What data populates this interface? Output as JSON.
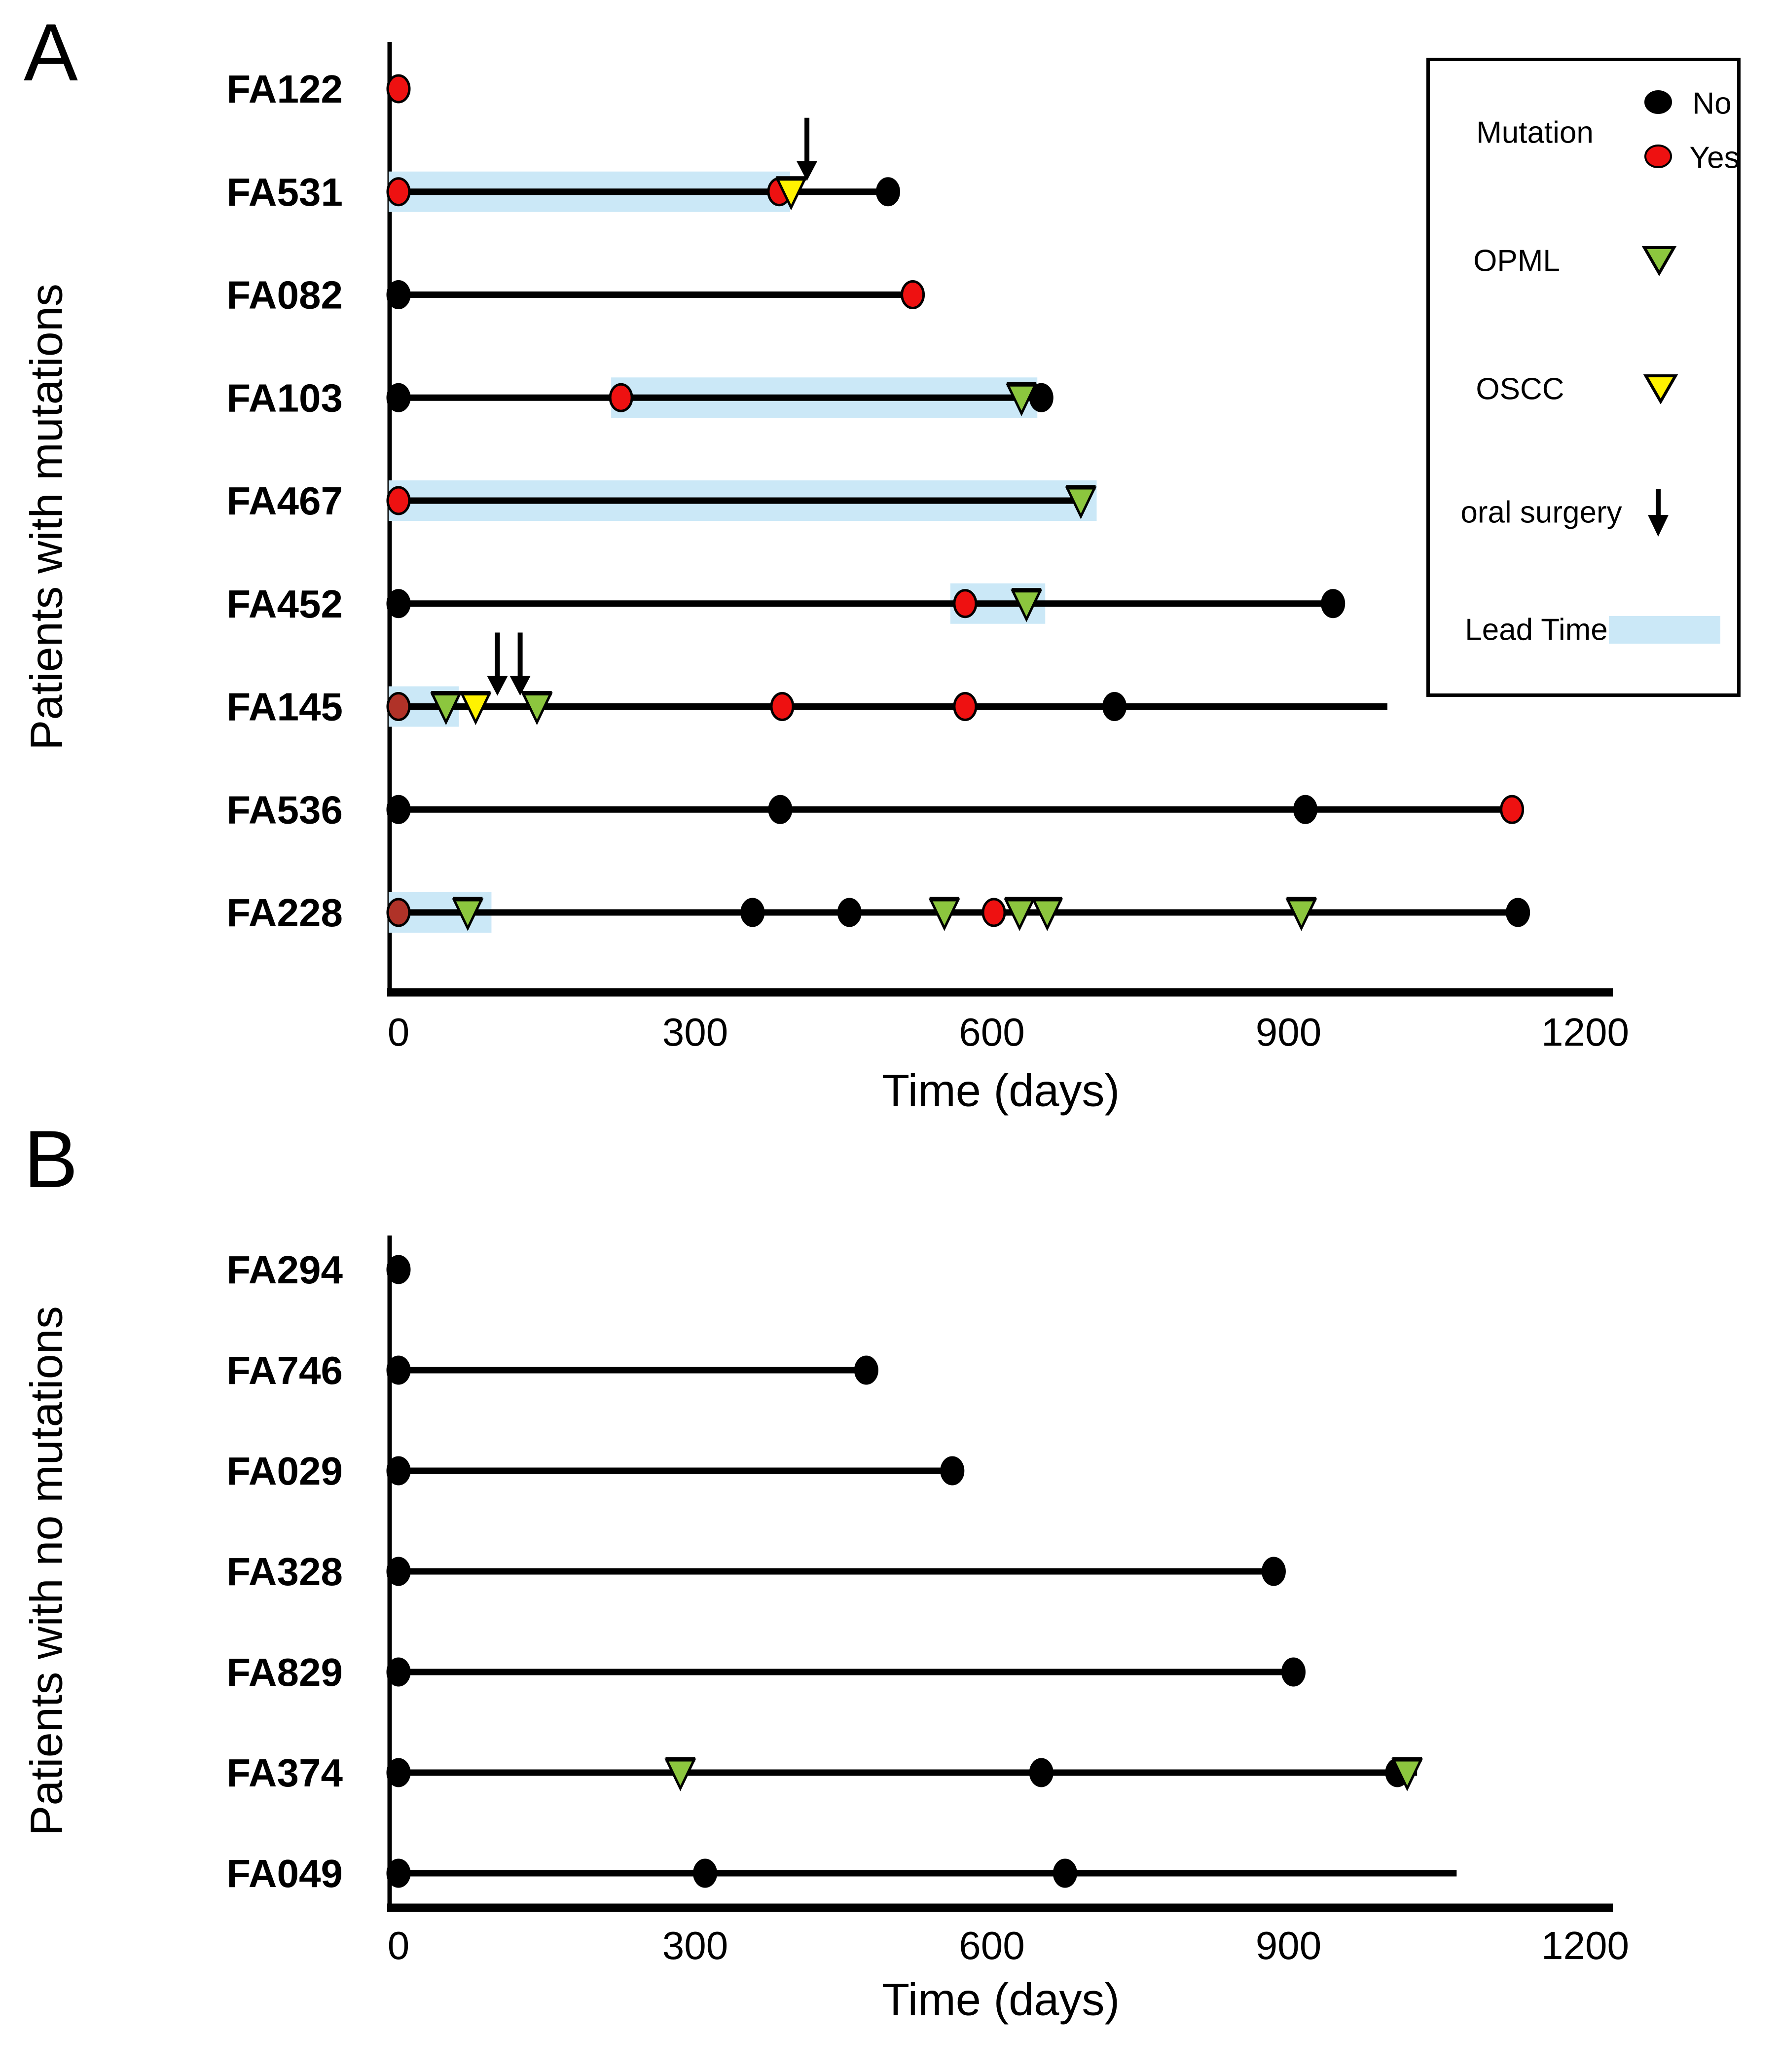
{
  "colors": {
    "mutation_no": "#000000",
    "mutation_yes": "#ee1111",
    "mutation_yes_dark": "#b03228",
    "opml_green": "#8cc63e",
    "oscc_yellow": "#fff200",
    "lead_time_blue": "#cbe8f7",
    "axis": "#000000"
  },
  "legend": {
    "mutation_label": "Mutation",
    "no_label": "No",
    "yes_label": "Yes",
    "opml_label": "OPML",
    "oscc_label": "OSCC",
    "oral_surgery_label": "oral surgery",
    "lead_time_label": "Lead Time"
  },
  "chart_data": [
    {
      "type": "scatter",
      "panel_label": "A",
      "ylabel": "Patients with mutations",
      "xlabel": "Time (days)",
      "x_ticks": [
        0,
        300,
        600,
        900,
        1200
      ],
      "xlim": [
        0,
        1230
      ],
      "marker_legend": {
        "no": "black circle",
        "yes": "red circle",
        "opml": "green triangle",
        "oscc": "yellow triangle",
        "arrow": "oral surgery",
        "lead": "lead time band"
      },
      "patients": [
        {
          "id": "FA122",
          "line": null,
          "lead": null,
          "events": [
            {
              "t": "yes",
              "d": 0
            }
          ]
        },
        {
          "id": "FA531",
          "line": [
            0,
            495
          ],
          "lead": [
            0,
            390
          ],
          "events": [
            {
              "t": "yes",
              "d": 0
            },
            {
              "t": "yes",
              "d": 385
            },
            {
              "t": "oscc",
              "d": 397
            },
            {
              "t": "no",
              "d": 495
            },
            {
              "t": "arrow",
              "d": 413
            }
          ]
        },
        {
          "id": "FA082",
          "line": [
            0,
            520
          ],
          "lead": null,
          "events": [
            {
              "t": "no",
              "d": 0
            },
            {
              "t": "yes",
              "d": 520
            }
          ]
        },
        {
          "id": "FA103",
          "line": [
            0,
            650
          ],
          "lead": [
            225,
            640
          ],
          "events": [
            {
              "t": "no",
              "d": 0
            },
            {
              "t": "yes",
              "d": 225
            },
            {
              "t": "no",
              "d": 650
            },
            {
              "t": "opml",
              "d": 630
            }
          ]
        },
        {
          "id": "FA467",
          "line": [
            0,
            692
          ],
          "lead": [
            0,
            700
          ],
          "events": [
            {
              "t": "yes",
              "d": 0
            },
            {
              "t": "opml",
              "d": 690
            }
          ]
        },
        {
          "id": "FA452",
          "line": [
            0,
            945
          ],
          "lead": [
            568,
            648
          ],
          "events": [
            {
              "t": "no",
              "d": 0
            },
            {
              "t": "yes",
              "d": 573
            },
            {
              "t": "opml",
              "d": 635
            },
            {
              "t": "no",
              "d": 945
            }
          ]
        },
        {
          "id": "FA145",
          "line": [
            0,
            1000
          ],
          "lead": [
            0,
            55
          ],
          "events": [
            {
              "t": "yes",
              "d": 0,
              "shade": "dark"
            },
            {
              "t": "opml",
              "d": 48
            },
            {
              "t": "oscc",
              "d": 78
            },
            {
              "t": "arrow",
              "d": 100
            },
            {
              "t": "arrow",
              "d": 123
            },
            {
              "t": "opml",
              "d": 140
            },
            {
              "t": "yes",
              "d": 388
            },
            {
              "t": "yes",
              "d": 573
            },
            {
              "t": "no",
              "d": 724
            }
          ]
        },
        {
          "id": "FA536",
          "line": [
            0,
            1126
          ],
          "lead": null,
          "events": [
            {
              "t": "no",
              "d": 0
            },
            {
              "t": "no",
              "d": 386
            },
            {
              "t": "no",
              "d": 917
            },
            {
              "t": "yes",
              "d": 1126
            }
          ]
        },
        {
          "id": "FA228",
          "line": [
            0,
            1132
          ],
          "lead": [
            0,
            88
          ],
          "events": [
            {
              "t": "yes",
              "d": 0,
              "shade": "dark"
            },
            {
              "t": "opml",
              "d": 70
            },
            {
              "t": "no",
              "d": 358
            },
            {
              "t": "no",
              "d": 456
            },
            {
              "t": "opml",
              "d": 552
            },
            {
              "t": "yes",
              "d": 602
            },
            {
              "t": "opml",
              "d": 628
            },
            {
              "t": "opml",
              "d": 656
            },
            {
              "t": "opml",
              "d": 913
            },
            {
              "t": "no",
              "d": 1132
            }
          ]
        }
      ]
    },
    {
      "type": "scatter",
      "panel_label": "B",
      "ylabel": "Patients with no mutations",
      "xlabel": "Time (days)",
      "x_ticks": [
        0,
        300,
        600,
        900,
        1200
      ],
      "xlim": [
        0,
        1230
      ],
      "patients": [
        {
          "id": "FA294",
          "line": null,
          "lead": null,
          "events": [
            {
              "t": "no",
              "d": 0
            }
          ]
        },
        {
          "id": "FA746",
          "line": [
            0,
            473
          ],
          "lead": null,
          "events": [
            {
              "t": "no",
              "d": 0
            },
            {
              "t": "no",
              "d": 473
            }
          ]
        },
        {
          "id": "FA029",
          "line": [
            0,
            560
          ],
          "lead": null,
          "events": [
            {
              "t": "no",
              "d": 0
            },
            {
              "t": "no",
              "d": 560
            }
          ]
        },
        {
          "id": "FA328",
          "line": [
            0,
            885
          ],
          "lead": null,
          "events": [
            {
              "t": "no",
              "d": 0
            },
            {
              "t": "no",
              "d": 885
            }
          ]
        },
        {
          "id": "FA829",
          "line": [
            0,
            905
          ],
          "lead": null,
          "events": [
            {
              "t": "no",
              "d": 0
            },
            {
              "t": "no",
              "d": 905
            }
          ]
        },
        {
          "id": "FA374",
          "line": [
            0,
            1030
          ],
          "lead": null,
          "events": [
            {
              "t": "no",
              "d": 0
            },
            {
              "t": "opml",
              "d": 285
            },
            {
              "t": "no",
              "d": 650
            },
            {
              "t": "no",
              "d": 1010
            },
            {
              "t": "opml",
              "d": 1020
            }
          ]
        },
        {
          "id": "FA049",
          "line": [
            0,
            1070
          ],
          "lead": null,
          "events": [
            {
              "t": "no",
              "d": 0
            },
            {
              "t": "no",
              "d": 310
            },
            {
              "t": "no",
              "d": 674
            }
          ]
        }
      ]
    }
  ]
}
